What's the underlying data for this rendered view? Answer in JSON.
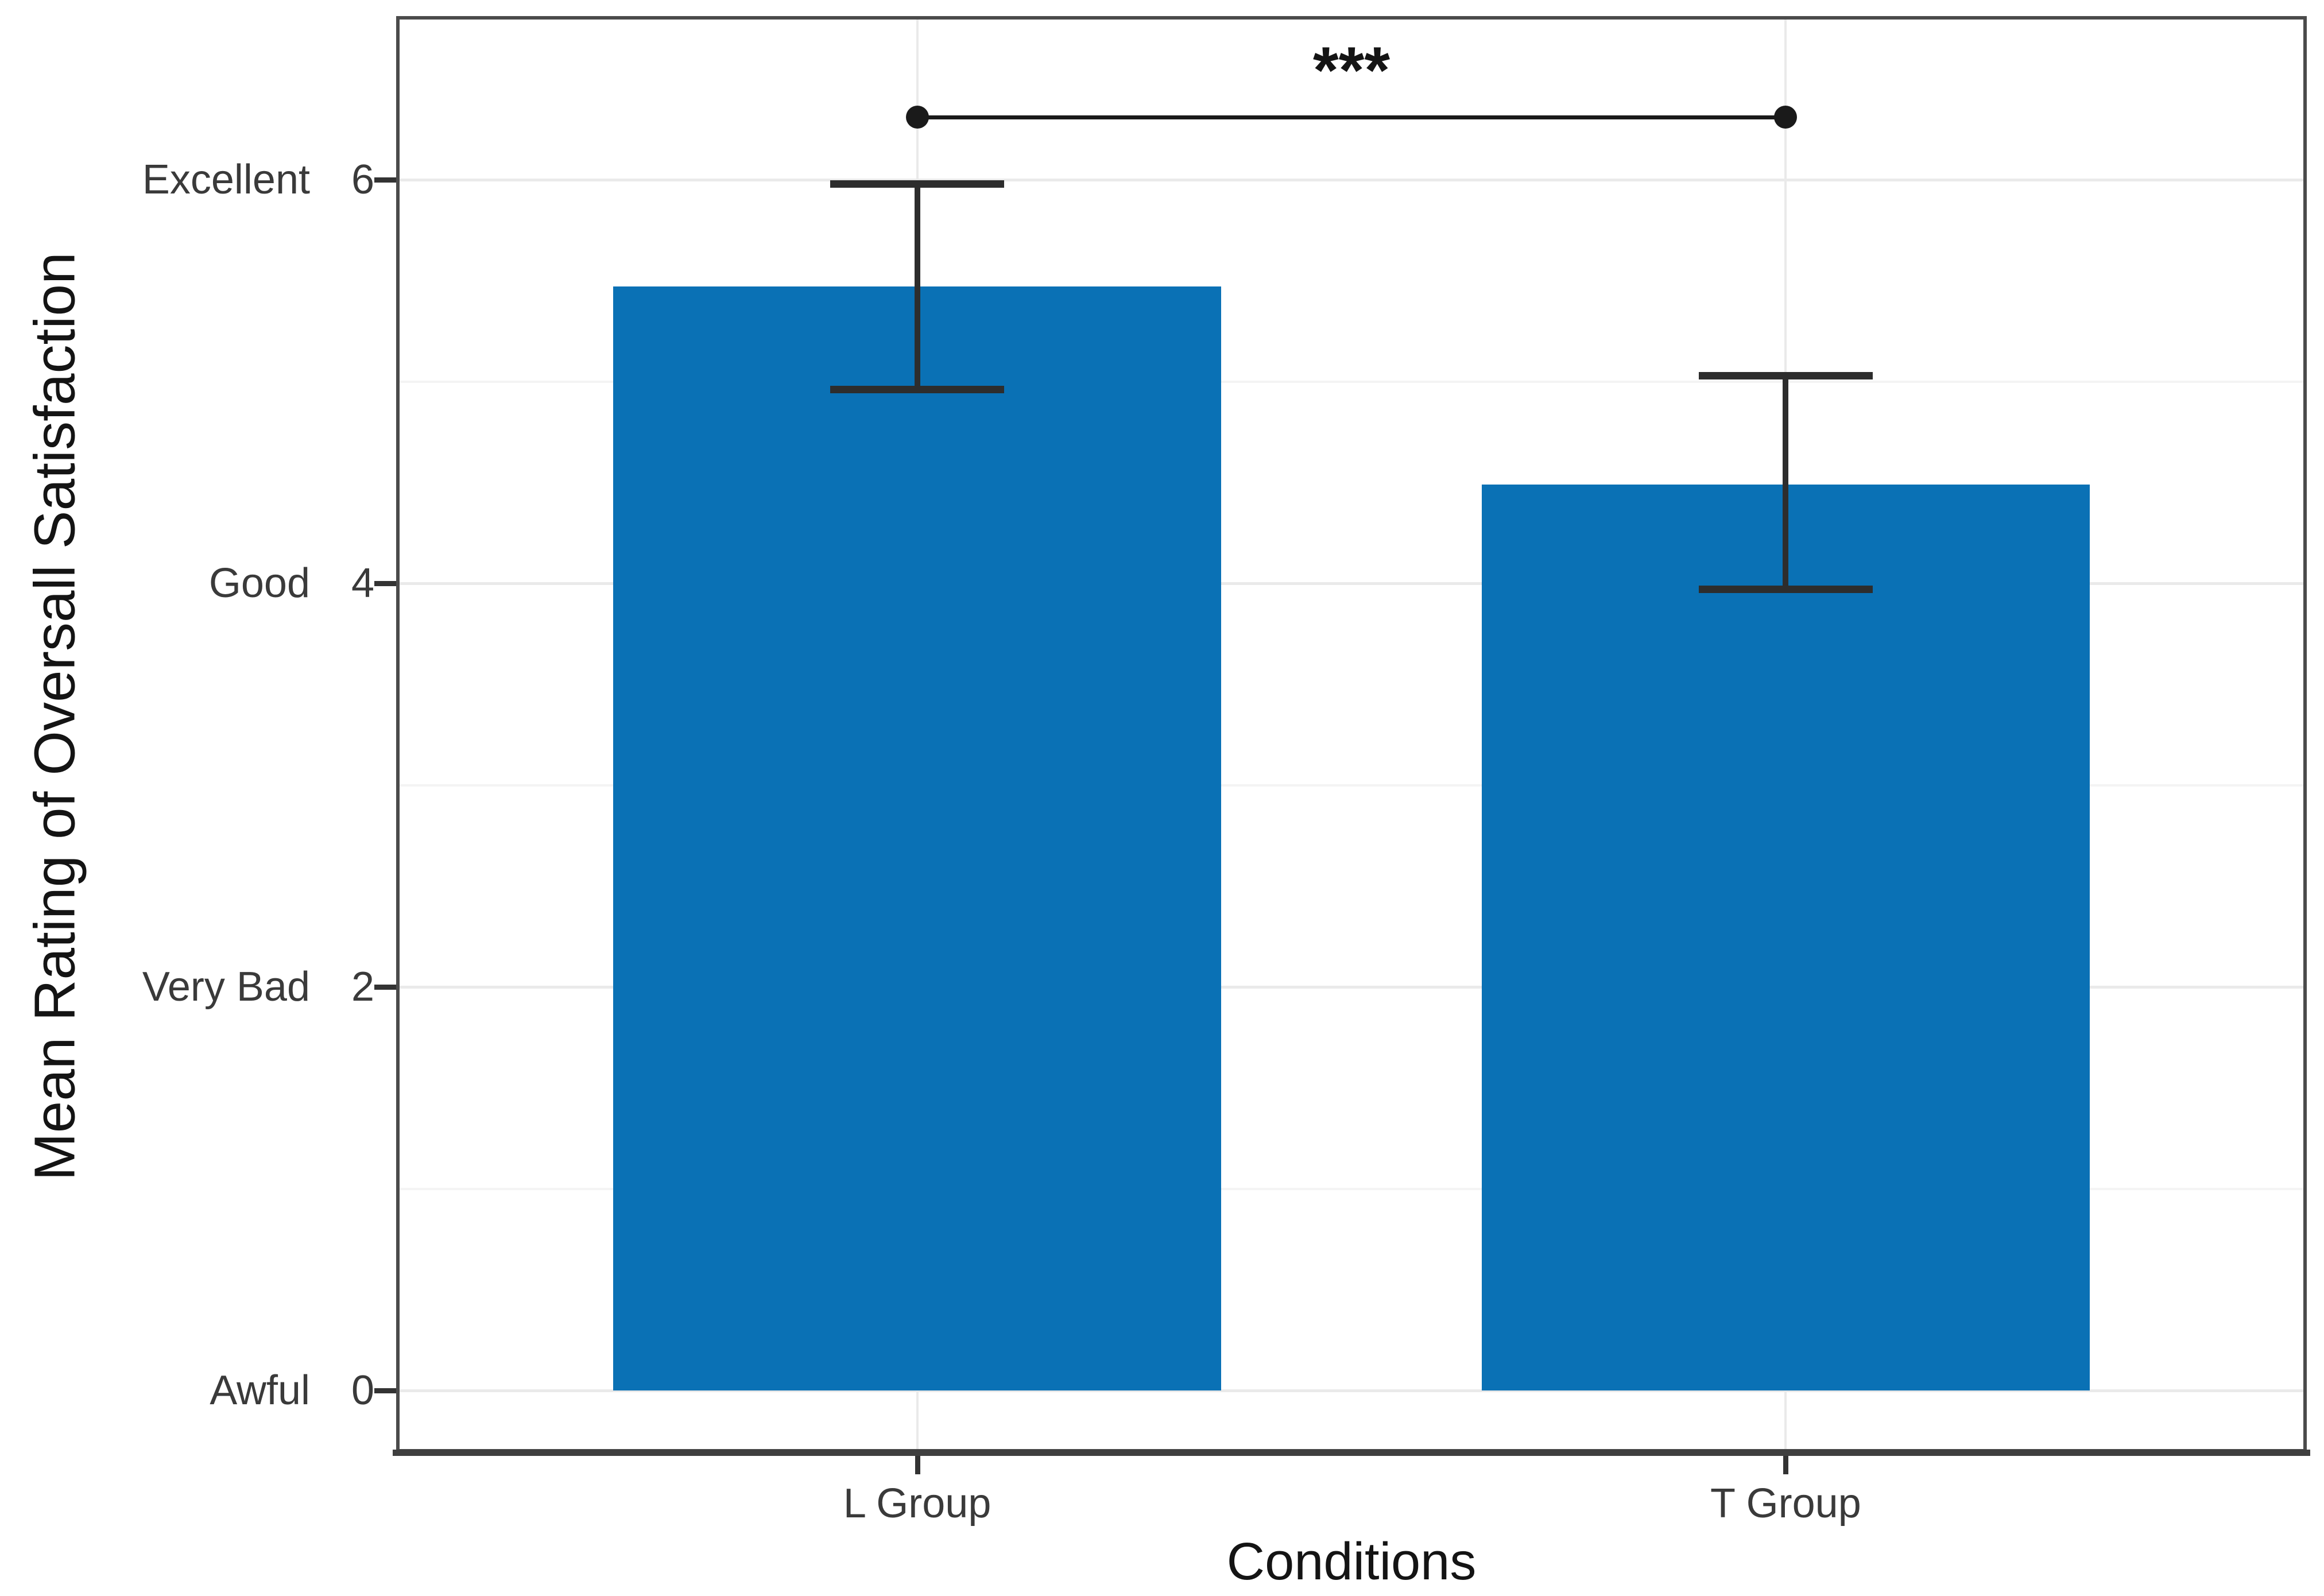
{
  "figure": {
    "background": "#ffffff"
  },
  "chart_data": {
    "type": "bar",
    "title": "",
    "xlabel": "Conditions",
    "ylabel": "Mean Rating of Oversall Satisfaction",
    "categories": [
      "L Group",
      "T Group"
    ],
    "values": [
      5.47,
      4.49
    ],
    "error_bars": {
      "upper": [
        5.98,
        5.03
      ],
      "lower": [
        4.96,
        3.97
      ]
    },
    "y_major_ticks": [
      {
        "value": 0,
        "word": "Awful",
        "number": "0"
      },
      {
        "value": 2,
        "word": "Very Bad",
        "number": "2"
      },
      {
        "value": 4,
        "word": "Good",
        "number": "4"
      },
      {
        "value": 6,
        "word": "Excellent",
        "number": "6"
      }
    ],
    "y_minor_ticks": [
      1,
      3,
      5
    ],
    "ylim": [
      -0.31,
      6.81
    ],
    "grid": true,
    "legend": "none",
    "significance": {
      "label": "***",
      "from": "L Group",
      "to": "T Group",
      "y": 6.31,
      "label_y": 6.53
    },
    "style": {
      "bar_color": "#0a71b5",
      "errorbar_color": "#2d2d2d",
      "sig_color": "#1a1a1a",
      "panel_border_color": "#4b4b4b",
      "axis_line_color": "#3f3f3f",
      "tick_color": "#333333",
      "major_grid_color": "#eaeaea",
      "minor_grid_color": "#f4f4f4",
      "text_color": "#3a3a3a",
      "title_color": "#141414"
    }
  }
}
